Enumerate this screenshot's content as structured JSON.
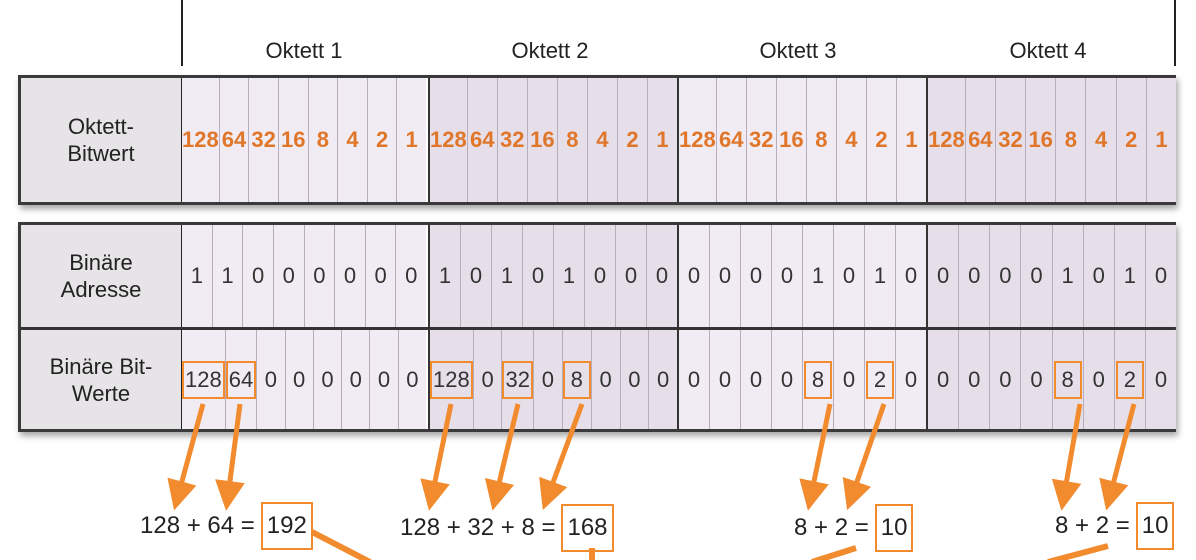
{
  "octet_headers": [
    "Oktett 1",
    "Oktett 2",
    "Oktett 3",
    "Oktett 4"
  ],
  "rows": {
    "bitvalue_label": "Oktett-\nBitwert",
    "binary_label": "Binäre\nAdresse",
    "bitvalues_label": "Binäre Bit-\nWerte"
  },
  "bit_weights": [
    "128",
    "64",
    "32",
    "16",
    "8",
    "4",
    "2",
    "1"
  ],
  "binary": [
    [
      "1",
      "1",
      "0",
      "0",
      "0",
      "0",
      "0",
      "0"
    ],
    [
      "1",
      "0",
      "1",
      "0",
      "1",
      "0",
      "0",
      "0"
    ],
    [
      "0",
      "0",
      "0",
      "0",
      "1",
      "0",
      "1",
      "0"
    ],
    [
      "0",
      "0",
      "0",
      "0",
      "1",
      "0",
      "1",
      "0"
    ]
  ],
  "bit_values": [
    [
      "128",
      "64",
      "0",
      "0",
      "0",
      "0",
      "0",
      "0"
    ],
    [
      "128",
      "0",
      "32",
      "0",
      "8",
      "0",
      "0",
      "0"
    ],
    [
      "0",
      "0",
      "0",
      "0",
      "8",
      "0",
      "2",
      "0"
    ],
    [
      "0",
      "0",
      "0",
      "0",
      "8",
      "0",
      "2",
      "0"
    ]
  ],
  "equations": [
    {
      "expr": "128 + 64 =",
      "result": "192"
    },
    {
      "expr": "128 + 32 + 8 =",
      "result": "168"
    },
    {
      "expr": "8 + 2 =",
      "result": "10"
    },
    {
      "expr": "8 + 2 =",
      "result": "10"
    }
  ],
  "colors": {
    "accent": "#f28a2e",
    "bitweight": "#e0762a",
    "border": "#333333"
  }
}
